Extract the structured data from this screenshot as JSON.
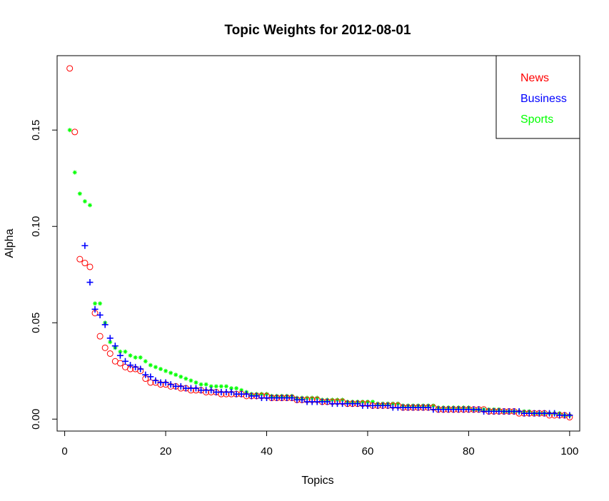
{
  "chart_data": {
    "type": "scatter",
    "title": "Topic Weights for 2012-08-01",
    "xlabel": "Topics",
    "ylabel": "Alpha",
    "xlim": [
      -1.5,
      102
    ],
    "ylim": [
      -0.0062,
      0.1886
    ],
    "x_ticks": [
      0,
      20,
      40,
      60,
      80,
      100
    ],
    "y_ticks": [
      0.0,
      0.05,
      0.1,
      0.15
    ],
    "x_tick_labels": [
      "0",
      "20",
      "40",
      "60",
      "80",
      "100"
    ],
    "y_tick_labels": [
      "0.00",
      "0.05",
      "0.10",
      "0.15"
    ],
    "grid": false,
    "legend_position": "top-right",
    "x": [
      1,
      2,
      3,
      4,
      5,
      6,
      7,
      8,
      9,
      10,
      11,
      12,
      13,
      14,
      15,
      16,
      17,
      18,
      19,
      20,
      21,
      22,
      23,
      24,
      25,
      26,
      27,
      28,
      29,
      30,
      31,
      32,
      33,
      34,
      35,
      36,
      37,
      38,
      39,
      40,
      41,
      42,
      43,
      44,
      45,
      46,
      47,
      48,
      49,
      50,
      51,
      52,
      53,
      54,
      55,
      56,
      57,
      58,
      59,
      60,
      61,
      62,
      63,
      64,
      65,
      66,
      67,
      68,
      69,
      70,
      71,
      72,
      73,
      74,
      75,
      76,
      77,
      78,
      79,
      80,
      81,
      82,
      83,
      84,
      85,
      86,
      87,
      88,
      89,
      90,
      91,
      92,
      93,
      94,
      95,
      96,
      97,
      98,
      99,
      100
    ],
    "series": [
      {
        "name": "News",
        "color": "#ff0000",
        "marker": "circle",
        "values": [
          0.182,
          0.149,
          0.083,
          0.081,
          0.079,
          0.055,
          0.043,
          0.037,
          0.034,
          0.03,
          0.029,
          0.027,
          0.026,
          0.026,
          0.025,
          0.021,
          0.019,
          0.019,
          0.018,
          0.018,
          0.017,
          0.017,
          0.016,
          0.016,
          0.015,
          0.015,
          0.015,
          0.014,
          0.014,
          0.014,
          0.013,
          0.013,
          0.013,
          0.013,
          0.013,
          0.012,
          0.012,
          0.012,
          0.012,
          0.012,
          0.011,
          0.011,
          0.011,
          0.011,
          0.011,
          0.01,
          0.01,
          0.01,
          0.01,
          0.01,
          0.009,
          0.009,
          0.009,
          0.009,
          0.009,
          0.008,
          0.008,
          0.008,
          0.008,
          0.008,
          0.007,
          0.007,
          0.007,
          0.007,
          0.007,
          0.007,
          0.006,
          0.006,
          0.006,
          0.006,
          0.006,
          0.006,
          0.006,
          0.005,
          0.005,
          0.005,
          0.005,
          0.005,
          0.005,
          0.005,
          0.005,
          0.005,
          0.005,
          0.004,
          0.004,
          0.004,
          0.004,
          0.004,
          0.004,
          0.003,
          0.003,
          0.003,
          0.003,
          0.003,
          0.003,
          0.002,
          0.002,
          0.002,
          0.002,
          0.001
        ]
      },
      {
        "name": "Business",
        "color": "#0000ff",
        "marker": "plus",
        "values": [
          null,
          null,
          null,
          0.09,
          0.071,
          0.057,
          0.054,
          0.049,
          0.042,
          0.038,
          0.033,
          0.03,
          0.028,
          0.027,
          0.026,
          0.023,
          0.022,
          0.02,
          0.019,
          0.019,
          0.018,
          0.017,
          0.017,
          0.016,
          0.016,
          0.016,
          0.015,
          0.015,
          0.015,
          0.014,
          0.014,
          0.014,
          0.014,
          0.013,
          0.013,
          0.013,
          0.012,
          0.012,
          0.011,
          0.011,
          0.011,
          0.011,
          0.011,
          0.011,
          0.011,
          0.01,
          0.01,
          0.009,
          0.009,
          0.009,
          0.009,
          0.009,
          0.008,
          0.008,
          0.008,
          0.008,
          0.008,
          0.008,
          0.007,
          0.007,
          0.007,
          0.007,
          0.007,
          0.007,
          0.006,
          0.006,
          0.006,
          0.006,
          0.006,
          0.006,
          0.006,
          0.006,
          0.005,
          0.005,
          0.005,
          0.005,
          0.005,
          0.005,
          0.005,
          0.005,
          0.005,
          0.005,
          0.004,
          0.004,
          0.004,
          0.004,
          0.004,
          0.004,
          0.004,
          0.004,
          0.003,
          0.003,
          0.003,
          0.003,
          0.003,
          0.003,
          0.003,
          0.002,
          0.002,
          0.002
        ]
      },
      {
        "name": "Sports",
        "color": "#00ff00",
        "marker": "asterisk",
        "values": [
          0.15,
          0.128,
          0.117,
          0.113,
          0.111,
          0.06,
          0.06,
          0.05,
          0.04,
          0.037,
          0.035,
          0.035,
          0.033,
          0.032,
          0.032,
          0.03,
          0.028,
          0.027,
          0.026,
          0.025,
          0.024,
          0.023,
          0.022,
          0.021,
          0.02,
          0.019,
          0.018,
          0.018,
          0.017,
          0.017,
          0.017,
          0.017,
          0.016,
          0.016,
          0.015,
          0.014,
          0.013,
          0.013,
          0.013,
          0.013,
          0.012,
          0.012,
          0.012,
          0.012,
          0.012,
          0.011,
          0.011,
          0.011,
          0.011,
          0.011,
          0.01,
          0.01,
          0.01,
          0.01,
          0.01,
          0.009,
          0.009,
          0.009,
          0.009,
          0.009,
          0.009,
          0.008,
          0.008,
          0.008,
          0.008,
          0.008,
          0.007,
          0.007,
          0.007,
          0.007,
          0.007,
          0.007,
          0.007,
          0.006,
          0.006,
          0.006,
          0.006,
          0.006,
          0.006,
          0.006,
          0.005,
          0.005,
          0.005,
          0.005,
          0.005,
          0.005,
          0.004,
          0.004,
          0.004,
          0.004,
          0.004,
          0.004,
          0.003,
          0.003,
          0.003,
          0.003,
          0.003,
          0.003,
          0.002,
          0.002
        ]
      }
    ]
  }
}
